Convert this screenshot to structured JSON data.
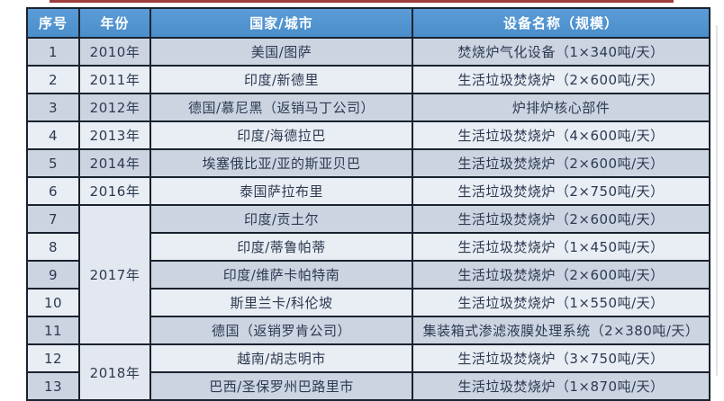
{
  "page": {
    "background": "#ffffff",
    "top_line_color": "#9e3c3c"
  },
  "table": {
    "columns": [
      "序号",
      "年份",
      "国家/城市",
      "设备名称（规模）"
    ],
    "header_bg": "#5094d0",
    "header_text_color": "#ffffff",
    "border_color": "#19222f",
    "row_dark_bg": "#ccd4e2",
    "row_light_bg": "#e9edf4",
    "year_merged_bg": "#e3e8f0",
    "body_text_color": "#2c3a50",
    "rows": [
      {
        "no": "1",
        "year": "2010年",
        "year_span": 1,
        "city": "美国/图萨",
        "equipment": "焚烧炉气化设备（1×340吨/天）"
      },
      {
        "no": "2",
        "year": "2011年",
        "year_span": 1,
        "city": "印度/新德里",
        "equipment": "生活垃圾焚烧炉（2×600吨/天）"
      },
      {
        "no": "3",
        "year": "2012年",
        "year_span": 1,
        "city": "德国/慕尼黑（返销马丁公司）",
        "equipment": "炉排炉核心部件"
      },
      {
        "no": "4",
        "year": "2013年",
        "year_span": 1,
        "city": "印度/海德拉巴",
        "equipment": "生活垃圾焚烧炉（4×600吨/天）"
      },
      {
        "no": "5",
        "year": "2014年",
        "year_span": 1,
        "city": "埃塞俄比亚/亚的斯亚贝巴",
        "equipment": "生活垃圾焚烧炉（2×600吨/天）"
      },
      {
        "no": "6",
        "year": "2016年",
        "year_span": 1,
        "city": "泰国萨拉布里",
        "equipment": "生活垃圾焚烧炉（2×750吨/天）"
      },
      {
        "no": "7",
        "year": "2017年",
        "year_span": 5,
        "city": "印度/贡土尔",
        "equipment": "生活垃圾焚烧炉（2×600吨/天）"
      },
      {
        "no": "8",
        "year": null,
        "city": "印度/蒂鲁帕蒂",
        "equipment": "生活垃圾焚烧炉（1×450吨/天）"
      },
      {
        "no": "9",
        "year": null,
        "city": "印度/维萨卡帕特南",
        "equipment": "生活垃圾焚烧炉（2×600吨/天）"
      },
      {
        "no": "10",
        "year": null,
        "city": "斯里兰卡/科伦坡",
        "equipment": "生活垃圾焚烧炉（1×550吨/天）"
      },
      {
        "no": "11",
        "year": null,
        "city": "德国（返销罗肯公司）",
        "equipment": "集装箱式渗滤液膜处理系统（2×380吨/天）"
      },
      {
        "no": "12",
        "year": "2018年",
        "year_span": 2,
        "city": "越南/胡志明市",
        "equipment": "生活垃圾焚烧炉（3×750吨/天）"
      },
      {
        "no": "13",
        "year": null,
        "city": "巴西/圣保罗州巴路里市",
        "equipment": "生活垃圾焚烧炉（1×870吨/天）"
      }
    ]
  }
}
